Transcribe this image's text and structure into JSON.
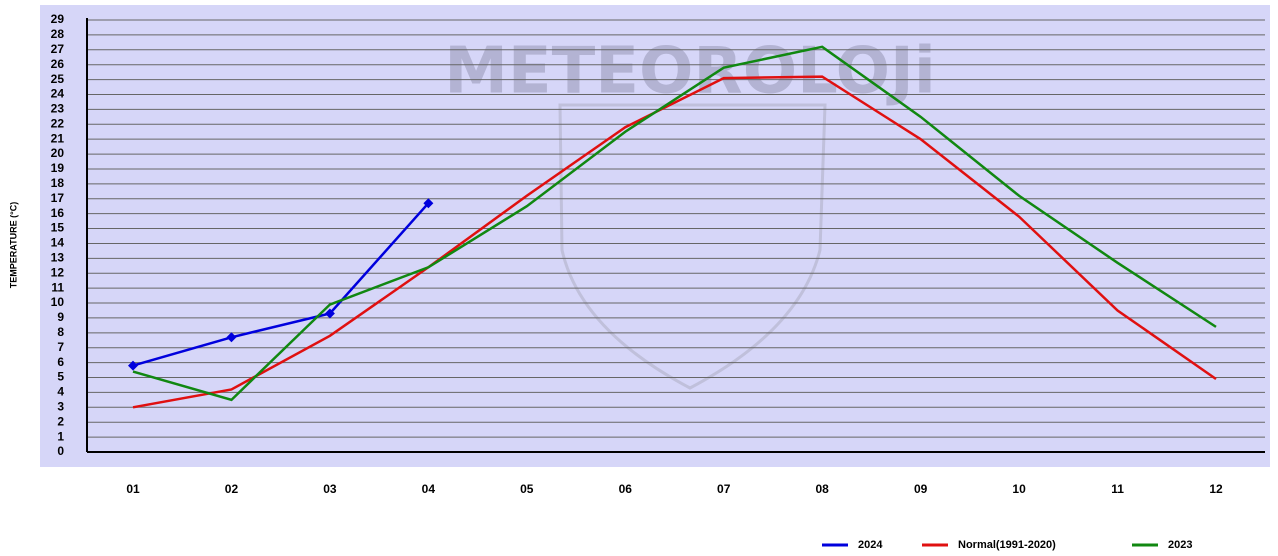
{
  "chart_data": {
    "type": "line",
    "ylabel": "TEMPERATURE (°C)",
    "watermark": "METEOROLOJi",
    "categories": [
      "01",
      "02",
      "03",
      "04",
      "05",
      "06",
      "07",
      "08",
      "09",
      "10",
      "11",
      "12"
    ],
    "series": [
      {
        "name": "2024",
        "color": "#0000dd",
        "marker": "diamond",
        "values": [
          5.8,
          7.7,
          9.3,
          16.7,
          null,
          null,
          null,
          null,
          null,
          null,
          null,
          null
        ]
      },
      {
        "name": "Normal(1991-2020)",
        "color": "#e01010",
        "values": [
          3.0,
          4.2,
          7.8,
          12.4,
          17.2,
          21.8,
          25.1,
          25.2,
          21.0,
          15.8,
          9.5,
          4.9
        ]
      },
      {
        "name": "2023",
        "color": "#118811",
        "values": [
          5.4,
          3.5,
          9.9,
          12.4,
          16.5,
          21.5,
          25.8,
          27.2,
          22.5,
          17.2,
          12.7,
          8.4
        ]
      }
    ],
    "ylim": [
      0,
      29
    ],
    "yticks": [
      0,
      1,
      2,
      3,
      4,
      5,
      6,
      7,
      8,
      9,
      10,
      11,
      12,
      13,
      14,
      15,
      16,
      17,
      18,
      19,
      20,
      21,
      22,
      23,
      24,
      25,
      26,
      27,
      28,
      29
    ],
    "grid": true,
    "legend": "bottom-right"
  }
}
